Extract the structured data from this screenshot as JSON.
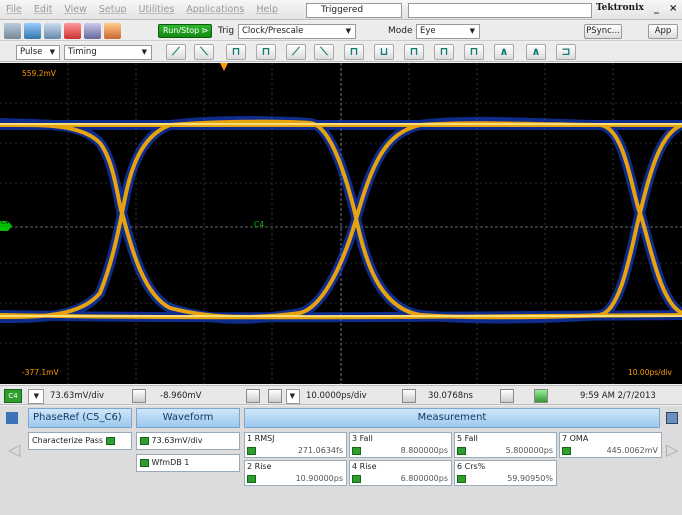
{
  "menu": [
    "File",
    "Edit",
    "View",
    "Setup",
    "Utilities",
    "Applications",
    "Help"
  ],
  "trigger_status": "Triggered",
  "brand": "Tektronix",
  "window_buttons": {
    "minimize": "_",
    "close": "×"
  },
  "toolbar1": {
    "run_stop": "Run/Stop",
    "trig_label": "Trig",
    "trig_source": "Clock/Prescale",
    "mode_label": "Mode",
    "mode_value": "Eye",
    "psync": "PSync...",
    "app": "App"
  },
  "toolbar2": {
    "analysis_dropdown": "Pulse",
    "timing_dropdown": "Timing"
  },
  "screen": {
    "top_label": "559.2mV",
    "bottom_label": "-377.1mV",
    "time_label": "10.00ps/div",
    "channel_marker": "C4",
    "ref_marker": "C4"
  },
  "statusbar": {
    "channel": "C4",
    "vertical_scale": "73.63mV/div",
    "offset": "-8.960mV",
    "horizontal_scale": "10.0000ps/div",
    "position": "30.0768ns",
    "clock": "9:59 AM 2/7/2013"
  },
  "panel": {
    "header_source": "PhaseRef (C5_C6)",
    "header_waveform": "Waveform",
    "header_measurement": "Measurement",
    "characterize_label": "Characterize",
    "characterize_status": "Pass",
    "waveform_scale": "73.63mV/div",
    "waveform_db": "WfmDB 1",
    "measurements": [
      {
        "name": "1 RMSJ",
        "value": "271.0634fs"
      },
      {
        "name": "2 Rise",
        "value": "10.90000ps"
      },
      {
        "name": "3 Fall",
        "value": "8.800000ps"
      },
      {
        "name": "4 Rise",
        "value": "6.800000ps"
      },
      {
        "name": "5 Fall",
        "value": "5.800000ps"
      },
      {
        "name": "6 Crs%",
        "value": "59.90950%"
      },
      {
        "name": "7 OMA",
        "value": "445.0062mV"
      }
    ]
  }
}
